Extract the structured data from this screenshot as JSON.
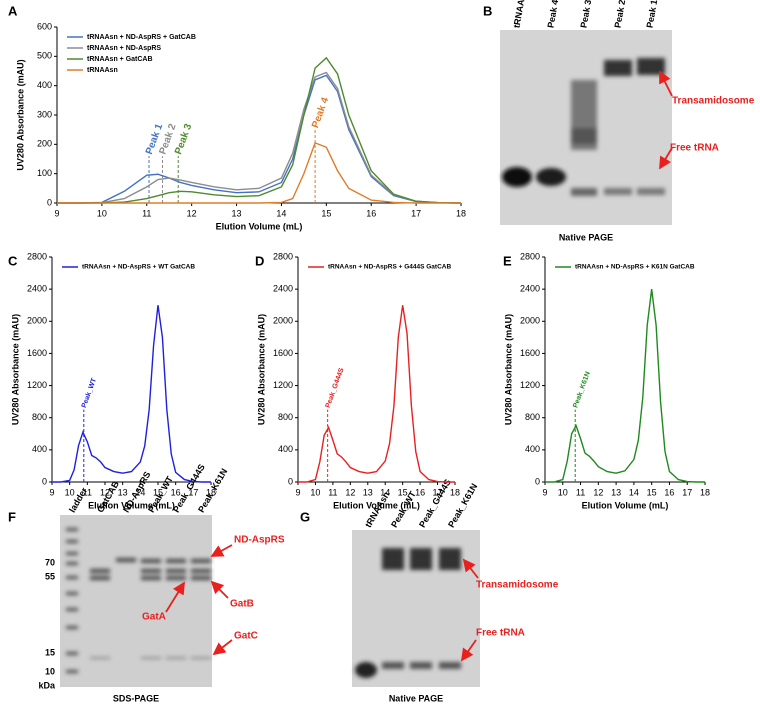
{
  "chart_data": [
    {
      "type": "line",
      "panel": "A",
      "xlabel": "Elution Volume (mL)",
      "ylabel": "UV280 Absorbance (mAU)",
      "x": [
        9,
        9.5,
        10,
        10.5,
        11,
        11.25,
        11.5,
        11.75,
        12,
        12.5,
        13,
        13.5,
        14,
        14.25,
        14.5,
        14.75,
        15,
        15.25,
        15.5,
        16,
        16.5,
        17,
        17.5,
        18
      ],
      "xlim": [
        9,
        18
      ],
      "xticks": [
        9,
        10,
        11,
        12,
        13,
        14,
        15,
        16,
        17,
        18
      ],
      "ylim": [
        0,
        600
      ],
      "yticks": [
        0,
        100,
        200,
        300,
        400,
        500,
        600
      ],
      "legend": "upper left",
      "series": [
        {
          "name": "tRNAAsn + ND-AspRS + GatCAB",
          "color": "#4472c4",
          "values": [
            0,
            0,
            2,
            40,
            95,
            98,
            85,
            70,
            60,
            45,
            35,
            38,
            70,
            150,
            300,
            420,
            435,
            380,
            250,
            90,
            25,
            5,
            1,
            0
          ]
        },
        {
          "name": "tRNAAsn + ND-AspRS",
          "color": "#8c8c8c",
          "values": [
            0,
            0,
            1,
            15,
            55,
            80,
            85,
            78,
            70,
            55,
            45,
            50,
            85,
            170,
            320,
            430,
            445,
            390,
            260,
            95,
            28,
            6,
            1,
            0
          ]
        },
        {
          "name": "tRNAAsn + GatCAB",
          "color": "#4e8a2e",
          "values": [
            0,
            0,
            0,
            3,
            15,
            25,
            35,
            40,
            38,
            28,
            22,
            25,
            55,
            130,
            300,
            460,
            495,
            440,
            300,
            110,
            30,
            6,
            1,
            0
          ]
        },
        {
          "name": "tRNAAsn",
          "color": "#e07b2a",
          "values": [
            0,
            0,
            0,
            0,
            0,
            0,
            0,
            0,
            0,
            0,
            0,
            0,
            2,
            15,
            100,
            205,
            190,
            110,
            50,
            10,
            2,
            0,
            0,
            0
          ]
        }
      ],
      "annotations": [
        {
          "text": "Peak 1",
          "x": 11.05,
          "y": 160,
          "color": "#4472c4"
        },
        {
          "text": "Peak 2",
          "x": 11.35,
          "y": 160,
          "color": "#8c8c8c"
        },
        {
          "text": "Peak 3",
          "x": 11.7,
          "y": 160,
          "color": "#4e8a2e"
        },
        {
          "text": "Peak 4",
          "x": 14.75,
          "y": 250,
          "color": "#e07b2a"
        }
      ]
    },
    {
      "type": "line",
      "panel": "C",
      "xlabel": "Elution Volume (mL)",
      "ylabel": "UV280 Absorbance (mAU)",
      "x": [
        9,
        9.5,
        10,
        10.25,
        10.5,
        10.75,
        11,
        11.25,
        11.5,
        11.75,
        12,
        12.5,
        13,
        13.5,
        14,
        14.25,
        14.5,
        14.75,
        15,
        15.25,
        15.5,
        15.75,
        16,
        16.5,
        17,
        17.5,
        18
      ],
      "xlim": [
        9,
        18
      ],
      "xticks": [
        9,
        10,
        11,
        12,
        13,
        14,
        15,
        16,
        17,
        18
      ],
      "ylim": [
        0,
        2800
      ],
      "yticks": [
        0,
        400,
        800,
        1200,
        1600,
        2000,
        2400,
        2800
      ],
      "legend": "upper left",
      "series": [
        {
          "name": "tRNAAsn + ND-AspRS + WT GatCAB",
          "color": "#1f1fe0",
          "values": [
            0,
            0,
            20,
            150,
            450,
            620,
            500,
            330,
            300,
            250,
            180,
            130,
            110,
            130,
            250,
            450,
            900,
            1700,
            2200,
            1800,
            900,
            350,
            120,
            30,
            5,
            0,
            0
          ]
        }
      ],
      "annotations": [
        {
          "text": "Peak_WT",
          "x": 10.8,
          "y": 900,
          "color": "#1f1fe0"
        }
      ]
    },
    {
      "type": "line",
      "panel": "D",
      "xlabel": "Elution Volume (mL)",
      "ylabel": "UV280 Absorbance (mAU)",
      "x": [
        9,
        9.5,
        10,
        10.25,
        10.5,
        10.75,
        11,
        11.25,
        11.5,
        11.75,
        12,
        12.5,
        13,
        13.5,
        14,
        14.25,
        14.5,
        14.75,
        15,
        15.25,
        15.5,
        15.75,
        16,
        16.5,
        17,
        17.5,
        18
      ],
      "xlim": [
        9,
        18
      ],
      "xticks": [
        9,
        10,
        11,
        12,
        13,
        14,
        15,
        16,
        17,
        18
      ],
      "ylim": [
        0,
        2800
      ],
      "yticks": [
        0,
        400,
        800,
        1200,
        1600,
        2000,
        2400,
        2800
      ],
      "legend": "upper left",
      "series": [
        {
          "name": "tRNAAsn + ND-AspRS + G444S GatCAB",
          "color": "#e82020",
          "values": [
            0,
            0,
            30,
            250,
            580,
            680,
            520,
            350,
            310,
            250,
            180,
            130,
            110,
            130,
            260,
            480,
            950,
            1800,
            2200,
            1850,
            950,
            380,
            130,
            30,
            5,
            0,
            0
          ]
        }
      ],
      "annotations": [
        {
          "text": "Peak_G444S",
          "x": 10.7,
          "y": 900,
          "color": "#e82020"
        }
      ]
    },
    {
      "type": "line",
      "panel": "E",
      "xlabel": "Elution Volume (mL)",
      "ylabel": "UV280 Absorbance (mAU)",
      "x": [
        9,
        9.5,
        10,
        10.25,
        10.5,
        10.75,
        11,
        11.25,
        11.5,
        11.75,
        12,
        12.5,
        13,
        13.5,
        14,
        14.25,
        14.5,
        14.75,
        15,
        15.25,
        15.5,
        15.75,
        16,
        16.5,
        17,
        17.5,
        18
      ],
      "xlim": [
        9,
        18
      ],
      "xticks": [
        9,
        10,
        11,
        12,
        13,
        14,
        15,
        16,
        17,
        18
      ],
      "ylim": [
        0,
        2800
      ],
      "yticks": [
        0,
        400,
        800,
        1200,
        1600,
        2000,
        2400,
        2800
      ],
      "legend": "upper left",
      "series": [
        {
          "name": "tRNAAsn + ND-AspRS + K61N GatCAB",
          "color": "#1e8a1e",
          "values": [
            0,
            0,
            30,
            260,
            600,
            700,
            540,
            360,
            320,
            260,
            190,
            130,
            110,
            140,
            280,
            520,
            1050,
            1950,
            2400,
            1950,
            1000,
            380,
            130,
            30,
            5,
            0,
            0
          ]
        }
      ],
      "annotations": [
        {
          "text": "Peak_K61N",
          "x": 10.7,
          "y": 900,
          "color": "#1e8a1e"
        }
      ]
    }
  ],
  "gels": [
    {
      "panel": "B",
      "lanes": [
        "tRNAAsn",
        "Peak 4",
        "Peak 3",
        "Peak 2",
        "Peak 1"
      ],
      "labels": [
        "Transamidosome",
        "Free tRNA"
      ],
      "caption": "Native PAGE"
    },
    {
      "panel": "F",
      "lanes": [
        "ladder",
        "GatCAB",
        "ND-AspRS",
        "Peak_WT",
        "Peak_G444S",
        "Peak_K61N"
      ],
      "markers": [
        "70",
        "55",
        "15",
        "10",
        "kDa"
      ],
      "labels": [
        "ND-AspRS",
        "GatA",
        "GatB",
        "GatC"
      ],
      "caption": "SDS-PAGE"
    },
    {
      "panel": "G",
      "lanes": [
        "tRNAAsn",
        "Peak_WT",
        "Peak_G444S",
        "Peak_K61N"
      ],
      "labels": [
        "Transamidosome",
        "Free tRNA"
      ],
      "caption": "Native PAGE"
    }
  ]
}
